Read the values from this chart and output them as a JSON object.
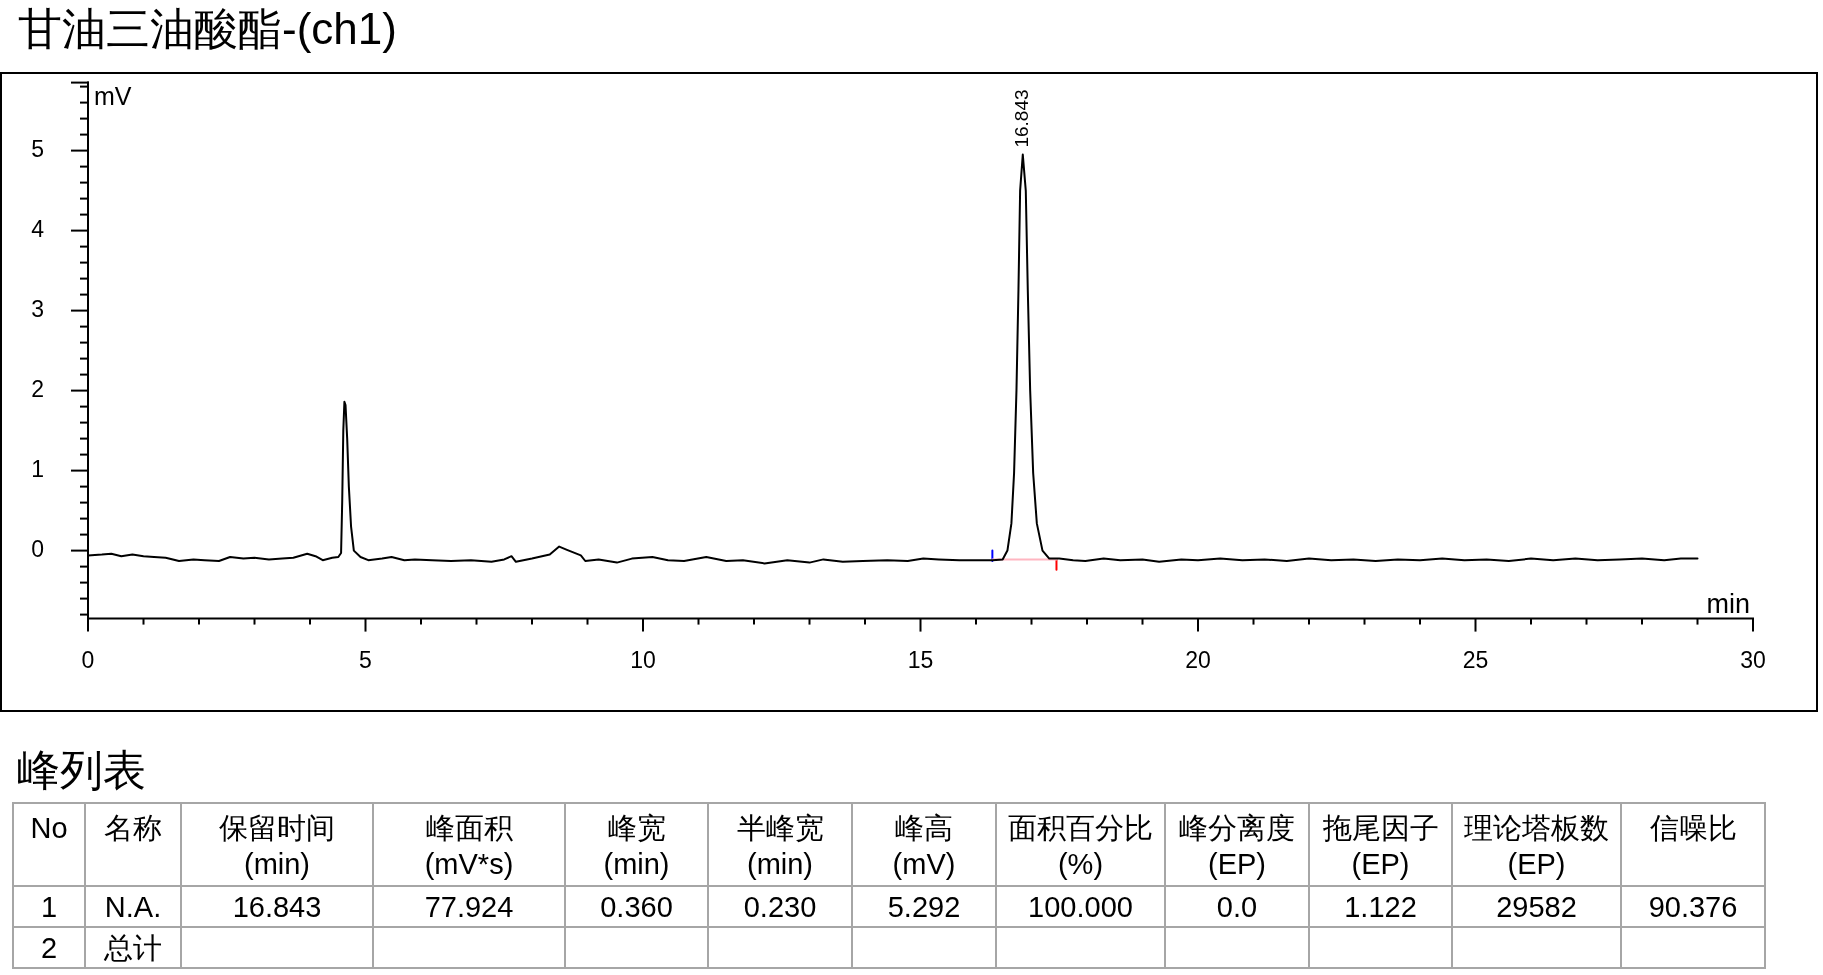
{
  "chart_data": [
    {
      "type": "line",
      "title": "甘油三油酸酯-(ch1)",
      "xlabel": "min",
      "ylabel": "mV",
      "xlim": [
        0,
        30
      ],
      "xticks": [
        0,
        {
          "value": 1,
          "label": null
        },
        {
          "value": 2,
          "label": null
        },
        {
          "value": 3,
          "label": null
        },
        {
          "value": 4,
          "label": null
        },
        5,
        {
          "value": 6,
          "label": null
        },
        {
          "value": 7,
          "label": null
        },
        {
          "value": 8,
          "label": null
        },
        {
          "value": 9,
          "label": null
        },
        10,
        {
          "value": 11,
          "label": null
        },
        {
          "value": 12,
          "label": null
        },
        {
          "value": 13,
          "label": null
        },
        {
          "value": 14,
          "label": null
        },
        15,
        {
          "value": 16,
          "label": null
        },
        {
          "value": 17,
          "label": null
        },
        {
          "value": 18,
          "label": null
        },
        {
          "value": 19,
          "label": null
        },
        20,
        {
          "value": 21,
          "label": null
        },
        {
          "value": 22,
          "label": null
        },
        {
          "value": 23,
          "label": null
        },
        {
          "value": 24,
          "label": null
        },
        25,
        {
          "value": 26,
          "label": null
        },
        {
          "value": 27,
          "label": null
        },
        {
          "value": 28,
          "label": null
        },
        {
          "value": 29,
          "label": null
        },
        30
      ],
      "ylim": [
        -0.85,
        5.85
      ],
      "yticks": [
        {
          "value": -0.8,
          "label": null
        },
        {
          "value": -0.6,
          "label": null
        },
        {
          "value": -0.4,
          "label": null
        },
        {
          "value": -0.2,
          "label": null
        },
        0,
        {
          "value": 0.2,
          "label": null
        },
        {
          "value": 0.4,
          "label": null
        },
        {
          "value": 0.6,
          "label": null
        },
        {
          "value": 0.8,
          "label": null
        },
        1,
        {
          "value": 1.2,
          "label": null
        },
        {
          "value": 1.4,
          "label": null
        },
        {
          "value": 1.6,
          "label": null
        },
        {
          "value": 1.8,
          "label": null
        },
        2,
        {
          "value": 2.2,
          "label": null
        },
        {
          "value": 2.4,
          "label": null
        },
        {
          "value": 2.6,
          "label": null
        },
        {
          "value": 2.8,
          "label": null
        },
        3,
        {
          "value": 3.2,
          "label": null
        },
        {
          "value": 3.4,
          "label": null
        },
        {
          "value": 3.6,
          "label": null
        },
        {
          "value": 3.8,
          "label": null
        },
        4,
        {
          "value": 4.2,
          "label": null
        },
        {
          "value": 4.4,
          "label": null
        },
        {
          "value": 4.6,
          "label": null
        },
        {
          "value": 4.8,
          "label": null
        },
        5,
        {
          "value": 5.2,
          "label": null
        },
        {
          "value": 5.4,
          "label": null
        },
        {
          "value": 5.6,
          "label": null
        },
        {
          "value": 5.8,
          "label": null
        }
      ],
      "series": [
        {
          "color": "#000000",
          "x": [
            0.0,
            0.25,
            0.42,
            0.6,
            0.8,
            1.0,
            1.19,
            1.4,
            1.64,
            1.9,
            2.1,
            2.36,
            2.56,
            2.8,
            3.0,
            3.26,
            3.5,
            3.7,
            3.95,
            4.1,
            4.23,
            4.4,
            4.51,
            4.56,
            4.58,
            4.6,
            4.62,
            4.64,
            4.67,
            4.7,
            4.74,
            4.79,
            4.91,
            5.05,
            5.3,
            5.47,
            5.7,
            5.89,
            6.2,
            6.54,
            6.9,
            7.27,
            7.5,
            7.63,
            7.71,
            8.0,
            8.32,
            8.49,
            8.63,
            8.88,
            8.96,
            9.2,
            9.53,
            9.8,
            10.17,
            10.45,
            10.74,
            11.14,
            11.5,
            11.8,
            12.19,
            12.6,
            13.0,
            13.25,
            13.6,
            13.96,
            14.4,
            14.77,
            15.05,
            15.33,
            15.7,
            16.13,
            16.3,
            16.48,
            16.566,
            16.638,
            16.686,
            16.729,
            16.765,
            16.795,
            16.843,
            16.897,
            16.933,
            16.976,
            17.03,
            17.096,
            17.198,
            17.32,
            17.5,
            17.75,
            17.97,
            18.3,
            18.6,
            19.0,
            19.3,
            19.7,
            20.0,
            20.4,
            20.8,
            21.2,
            21.6,
            22.0,
            22.4,
            22.8,
            23.2,
            23.6,
            24.0,
            24.4,
            24.8,
            25.2,
            25.6,
            26.0,
            26.4,
            26.8,
            27.2,
            27.6,
            28.0,
            28.4,
            28.7,
            29.0
          ],
          "values": [
            -0.06,
            -0.05,
            -0.04,
            -0.07,
            -0.05,
            -0.07,
            -0.08,
            -0.09,
            -0.13,
            -0.11,
            -0.12,
            -0.13,
            -0.08,
            -0.1,
            -0.09,
            -0.11,
            -0.1,
            -0.09,
            -0.04,
            -0.07,
            -0.12,
            -0.09,
            -0.08,
            -0.03,
            0.6,
            1.5,
            1.86,
            1.82,
            1.4,
            0.8,
            0.3,
            0.0,
            -0.08,
            -0.12,
            -0.1,
            -0.08,
            -0.12,
            -0.11,
            -0.12,
            -0.13,
            -0.12,
            -0.14,
            -0.11,
            -0.07,
            -0.14,
            -0.1,
            -0.05,
            0.05,
            0.01,
            -0.06,
            -0.13,
            -0.11,
            -0.15,
            -0.1,
            -0.08,
            -0.12,
            -0.13,
            -0.08,
            -0.13,
            -0.12,
            -0.16,
            -0.12,
            -0.15,
            -0.11,
            -0.14,
            -0.13,
            -0.12,
            -0.13,
            -0.1,
            -0.11,
            -0.12,
            -0.12,
            -0.12,
            -0.11,
            0.0,
            0.34,
            0.97,
            2.0,
            3.26,
            4.5,
            4.95,
            4.5,
            3.26,
            2.0,
            0.97,
            0.34,
            0.0,
            -0.1,
            -0.1,
            -0.12,
            -0.13,
            -0.1,
            -0.12,
            -0.11,
            -0.14,
            -0.11,
            -0.12,
            -0.1,
            -0.12,
            -0.11,
            -0.13,
            -0.1,
            -0.12,
            -0.11,
            -0.13,
            -0.11,
            -0.12,
            -0.1,
            -0.12,
            -0.11,
            -0.13,
            -0.1,
            -0.12,
            -0.1,
            -0.12,
            -0.11,
            -0.1,
            -0.12,
            -0.1,
            -0.1
          ]
        },
        {
          "color": "#ffb6c1",
          "x": [
            16.295,
            17.45
          ],
          "values": [
            -0.11,
            -0.11
          ]
        },
        {
          "color": "#0000ff",
          "x": [
            16.295,
            16.295
          ],
          "values": [
            0.0,
            -0.13
          ]
        },
        {
          "color": "#ff0000",
          "x": [
            17.45,
            17.45
          ],
          "values": [
            -0.11,
            -0.24
          ]
        }
      ],
      "annotations": [
        {
          "text": "16.843",
          "x": 16.843,
          "y": 4.95
        }
      ]
    },
    {
      "type": "other",
      "title": "峰列表",
      "categories": [
        "No",
        "名称",
        "保留时间\n(min)",
        "峰面积\n(mV*s)",
        "峰宽\n(min)",
        "半峰宽\n(min)",
        "峰高\n(mV)",
        "面积百分比\n(%)",
        "峰分离度\n(EP)",
        "拖尾因子\n(EP)",
        "理论塔板数\n(EP)",
        "信噪比"
      ],
      "cell_labels": [
        [
          "1",
          "N.A.",
          "16.843",
          "77.924",
          "0.360",
          "0.230",
          "5.292",
          "100.000",
          "0.0",
          "1.122",
          "29582",
          "90.376"
        ],
        [
          "2",
          "总计",
          null,
          null,
          null,
          null,
          null,
          null,
          null,
          null,
          null,
          null
        ]
      ]
    }
  ]
}
